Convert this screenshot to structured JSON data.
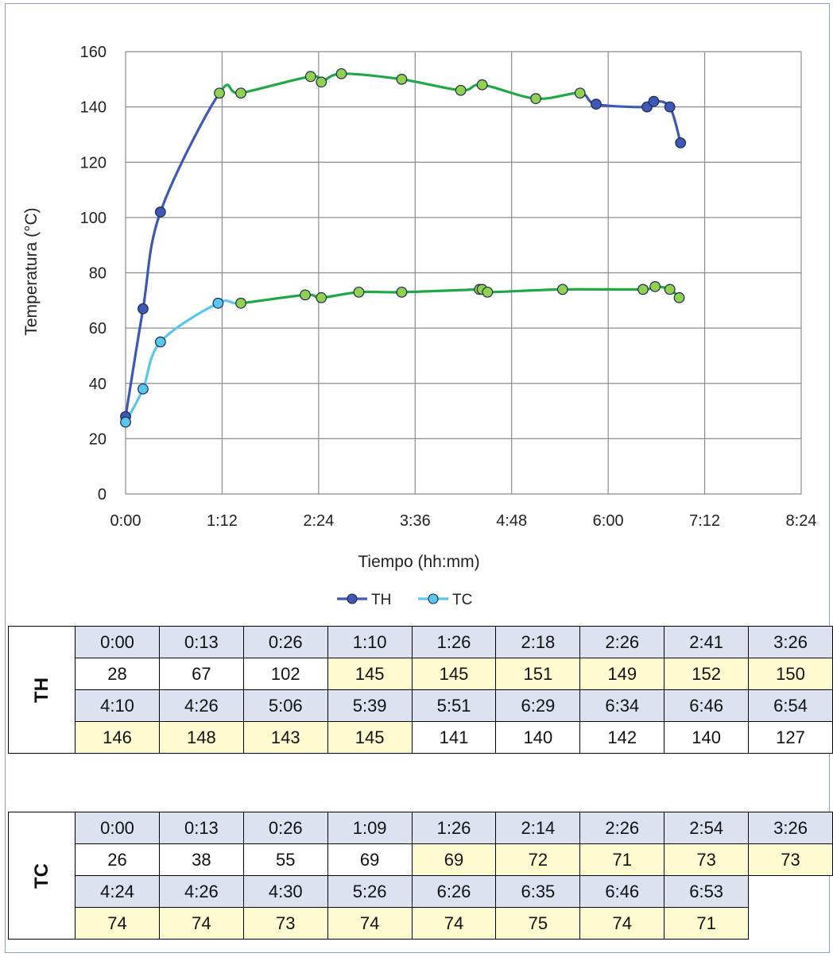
{
  "chart_data": {
    "type": "line",
    "xlabel": "Tiempo (hh:mm)",
    "ylabel": "Temperatura (°C)",
    "xlim_minutes": [
      0,
      504
    ],
    "ylim": [
      0,
      160
    ],
    "x_ticks": [
      "0:00",
      "1:12",
      "2:24",
      "3:36",
      "4:48",
      "6:00",
      "7:12",
      "8:24"
    ],
    "y_ticks": [
      "0",
      "20",
      "40",
      "60",
      "80",
      "100",
      "120",
      "140",
      "160"
    ],
    "grid": true,
    "legend_position": "bottom",
    "series": [
      {
        "name": "TH",
        "color": "#3f57b5",
        "highlight_color": "#1fa845",
        "x": [
          "0:00",
          "0:13",
          "0:26",
          "1:10",
          "1:26",
          "2:18",
          "2:26",
          "2:41",
          "3:26",
          "4:10",
          "4:26",
          "5:06",
          "5:39",
          "5:51",
          "6:29",
          "6:34",
          "6:46",
          "6:54"
        ],
        "values": [
          28,
          67,
          102,
          145,
          145,
          151,
          149,
          152,
          150,
          146,
          148,
          143,
          145,
          141,
          140,
          142,
          140,
          127
        ],
        "highlighted": [
          false,
          false,
          false,
          true,
          true,
          true,
          true,
          true,
          true,
          true,
          true,
          true,
          true,
          false,
          false,
          false,
          false,
          false
        ]
      },
      {
        "name": "TC",
        "color": "#5ac6ec",
        "highlight_color": "#1fa845",
        "x": [
          "0:00",
          "0:13",
          "0:26",
          "1:09",
          "1:26",
          "2:14",
          "2:26",
          "2:54",
          "3:26",
          "4:24",
          "4:26",
          "4:30",
          "5:26",
          "6:26",
          "6:35",
          "6:46",
          "6:53"
        ],
        "values": [
          26,
          38,
          55,
          69,
          69,
          72,
          71,
          73,
          73,
          74,
          74,
          73,
          74,
          74,
          75,
          74,
          71
        ],
        "highlighted": [
          false,
          false,
          false,
          false,
          true,
          true,
          true,
          true,
          true,
          true,
          true,
          true,
          true,
          true,
          true,
          true,
          true
        ]
      }
    ]
  },
  "tables": [
    {
      "label": "TH",
      "rows": [
        [
          "0:00",
          "0:13",
          "0:26",
          "1:10",
          "1:26",
          "2:18",
          "2:26",
          "2:41",
          "3:26"
        ],
        [
          "28",
          "67",
          "102",
          "145",
          "145",
          "151",
          "149",
          "152",
          "150"
        ],
        [
          "4:10",
          "4:26",
          "5:06",
          "5:39",
          "5:51",
          "6:29",
          "6:34",
          "6:46",
          "6:54"
        ],
        [
          "146",
          "148",
          "143",
          "145",
          "141",
          "140",
          "142",
          "140",
          "127"
        ]
      ],
      "highlight": [
        [
          false,
          false,
          false,
          false,
          false,
          false,
          false,
          false,
          false
        ],
        [
          false,
          false,
          false,
          true,
          true,
          true,
          true,
          true,
          true
        ],
        [
          false,
          false,
          false,
          false,
          false,
          false,
          false,
          false,
          false
        ],
        [
          true,
          true,
          true,
          true,
          false,
          false,
          false,
          false,
          false
        ]
      ]
    },
    {
      "label": "TC",
      "rows": [
        [
          "0:00",
          "0:13",
          "0:26",
          "1:09",
          "1:26",
          "2:14",
          "2:26",
          "2:54",
          "3:26"
        ],
        [
          "26",
          "38",
          "55",
          "69",
          "69",
          "72",
          "71",
          "73",
          "73"
        ],
        [
          "4:24",
          "4:26",
          "4:30",
          "5:26",
          "6:26",
          "6:35",
          "6:46",
          "6:53",
          ""
        ],
        [
          "74",
          "74",
          "73",
          "74",
          "74",
          "75",
          "74",
          "71",
          ""
        ]
      ],
      "highlight": [
        [
          false,
          false,
          false,
          false,
          false,
          false,
          false,
          false,
          false
        ],
        [
          false,
          false,
          false,
          false,
          true,
          true,
          true,
          true,
          true
        ],
        [
          false,
          false,
          false,
          false,
          false,
          false,
          false,
          false,
          false
        ],
        [
          true,
          true,
          true,
          true,
          true,
          true,
          true,
          true,
          false
        ]
      ]
    }
  ]
}
